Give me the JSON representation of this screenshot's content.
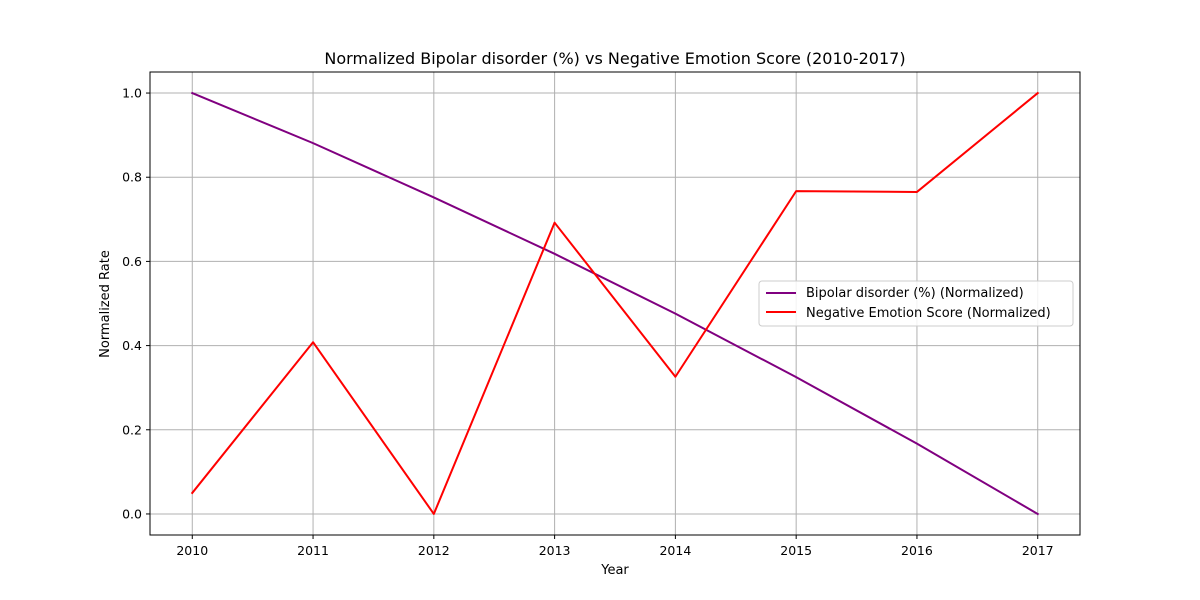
{
  "chart_data": {
    "type": "line",
    "title": "Normalized Bipolar disorder (%) vs Negative Emotion Score (2010-2017)",
    "xlabel": "Year",
    "ylabel": "Normalized Rate",
    "x": [
      2010,
      2011,
      2012,
      2013,
      2014,
      2015,
      2016,
      2017
    ],
    "x_tick_labels": [
      "2010",
      "2011",
      "2012",
      "2013",
      "2014",
      "2015",
      "2016",
      "2017"
    ],
    "xlim": [
      2009.65,
      2017.35
    ],
    "ylim": [
      -0.05,
      1.05
    ],
    "y_ticks": [
      0.0,
      0.2,
      0.4,
      0.6,
      0.8,
      1.0
    ],
    "y_tick_labels": [
      "0.0",
      "0.2",
      "0.4",
      "0.6",
      "0.8",
      "1.0"
    ],
    "grid": true,
    "legend_position": "center-right",
    "series": [
      {
        "name": "Bipolar disorder (%) (Normalized)",
        "color": "#800080",
        "values": [
          1.0,
          0.881,
          0.752,
          0.618,
          0.476,
          0.325,
          0.167,
          0.0
        ]
      },
      {
        "name": "Negative Emotion Score (Normalized)",
        "color": "#ff0000",
        "values": [
          0.05,
          0.408,
          0.0,
          0.692,
          0.326,
          0.767,
          0.765,
          1.0
        ]
      }
    ]
  }
}
